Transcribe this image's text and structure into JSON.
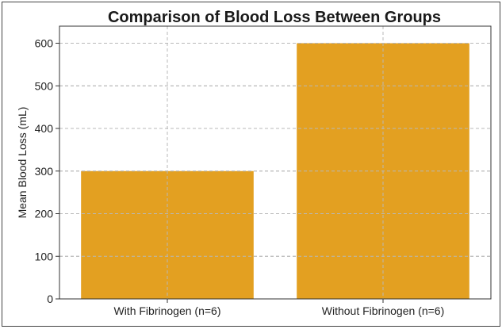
{
  "chart_data": {
    "type": "bar",
    "title": "Comparison of Blood Loss Between Groups",
    "xlabel": "",
    "ylabel": "Mean Blood Loss (mL)",
    "categories": [
      "With Fibrinogen (n=6)",
      "Without Fibrinogen (n=6)"
    ],
    "values": [
      300,
      600
    ],
    "ylim": [
      0,
      640
    ],
    "yticks": [
      0,
      100,
      200,
      300,
      400,
      500,
      600
    ],
    "grid": true,
    "bar_color": "#E3A021"
  }
}
